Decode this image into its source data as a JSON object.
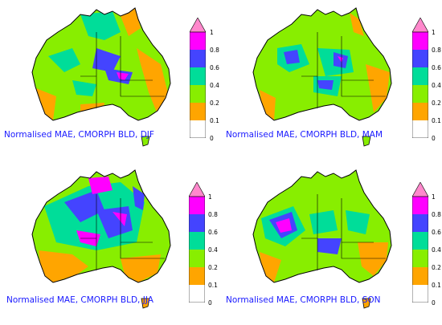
{
  "panels": [
    {
      "caption": "Normalised MAE, CMORPH BLD, DJF",
      "season": "DJF"
    },
    {
      "caption": "Normalised MAE, CMORPH BLD, MAM",
      "season": "MAM"
    },
    {
      "caption": "Normalised MAE, CMORPH BLD, JJA",
      "season": "JJA"
    },
    {
      "caption": "Normalised MAE, CMORPH BLD, SON",
      "season": "SON"
    }
  ],
  "colorbar": {
    "ticks": [
      "1",
      "0.8",
      "0.6",
      "0.4",
      "0.2",
      "0.1",
      "0"
    ],
    "colors": {
      "over": "#ff88cc",
      "c_0_8_1": "#ff00ff",
      "c_0_6_0_8": "#4444ff",
      "c_0_4_0_6": "#00dd99",
      "c_0_2_0_4": "#88ee00",
      "c_0_1_0_2": "#ffa500",
      "c_0_0_1": "#ffffff"
    }
  }
}
